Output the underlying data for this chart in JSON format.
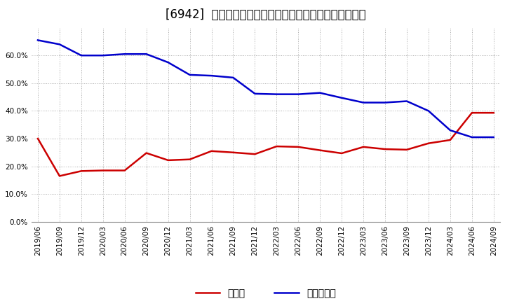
{
  "title": "[6942]  現預金、有利子負債の総資産に対する比率の推移",
  "x_labels": [
    "2019/06",
    "2019/09",
    "2019/12",
    "2020/03",
    "2020/06",
    "2020/09",
    "2020/12",
    "2021/03",
    "2021/06",
    "2021/09",
    "2021/12",
    "2022/03",
    "2022/06",
    "2022/09",
    "2022/12",
    "2023/03",
    "2023/06",
    "2023/09",
    "2023/12",
    "2024/03",
    "2024/06",
    "2024/09"
  ],
  "cash": [
    0.3,
    0.165,
    0.183,
    0.185,
    0.185,
    0.248,
    0.222,
    0.225,
    0.255,
    0.25,
    0.244,
    0.272,
    0.27,
    0.258,
    0.247,
    0.27,
    0.262,
    0.26,
    0.283,
    0.295,
    0.393,
    0.393
  ],
  "debt": [
    0.655,
    0.64,
    0.6,
    0.6,
    0.605,
    0.605,
    0.575,
    0.53,
    0.527,
    0.52,
    0.462,
    0.46,
    0.46,
    0.465,
    0.447,
    0.43,
    0.43,
    0.435,
    0.4,
    0.33,
    0.305,
    0.305
  ],
  "cash_color": "#cc0000",
  "debt_color": "#0000cc",
  "bg_color": "#ffffff",
  "grid_color": "#aaaaaa",
  "ylim": [
    0.0,
    0.7
  ],
  "yticks": [
    0.0,
    0.1,
    0.2,
    0.3,
    0.4,
    0.5,
    0.6
  ],
  "legend_cash": "現預金",
  "legend_debt": "有利子負債",
  "title_fontsize": 12,
  "axis_fontsize": 7.5,
  "legend_fontsize": 10
}
